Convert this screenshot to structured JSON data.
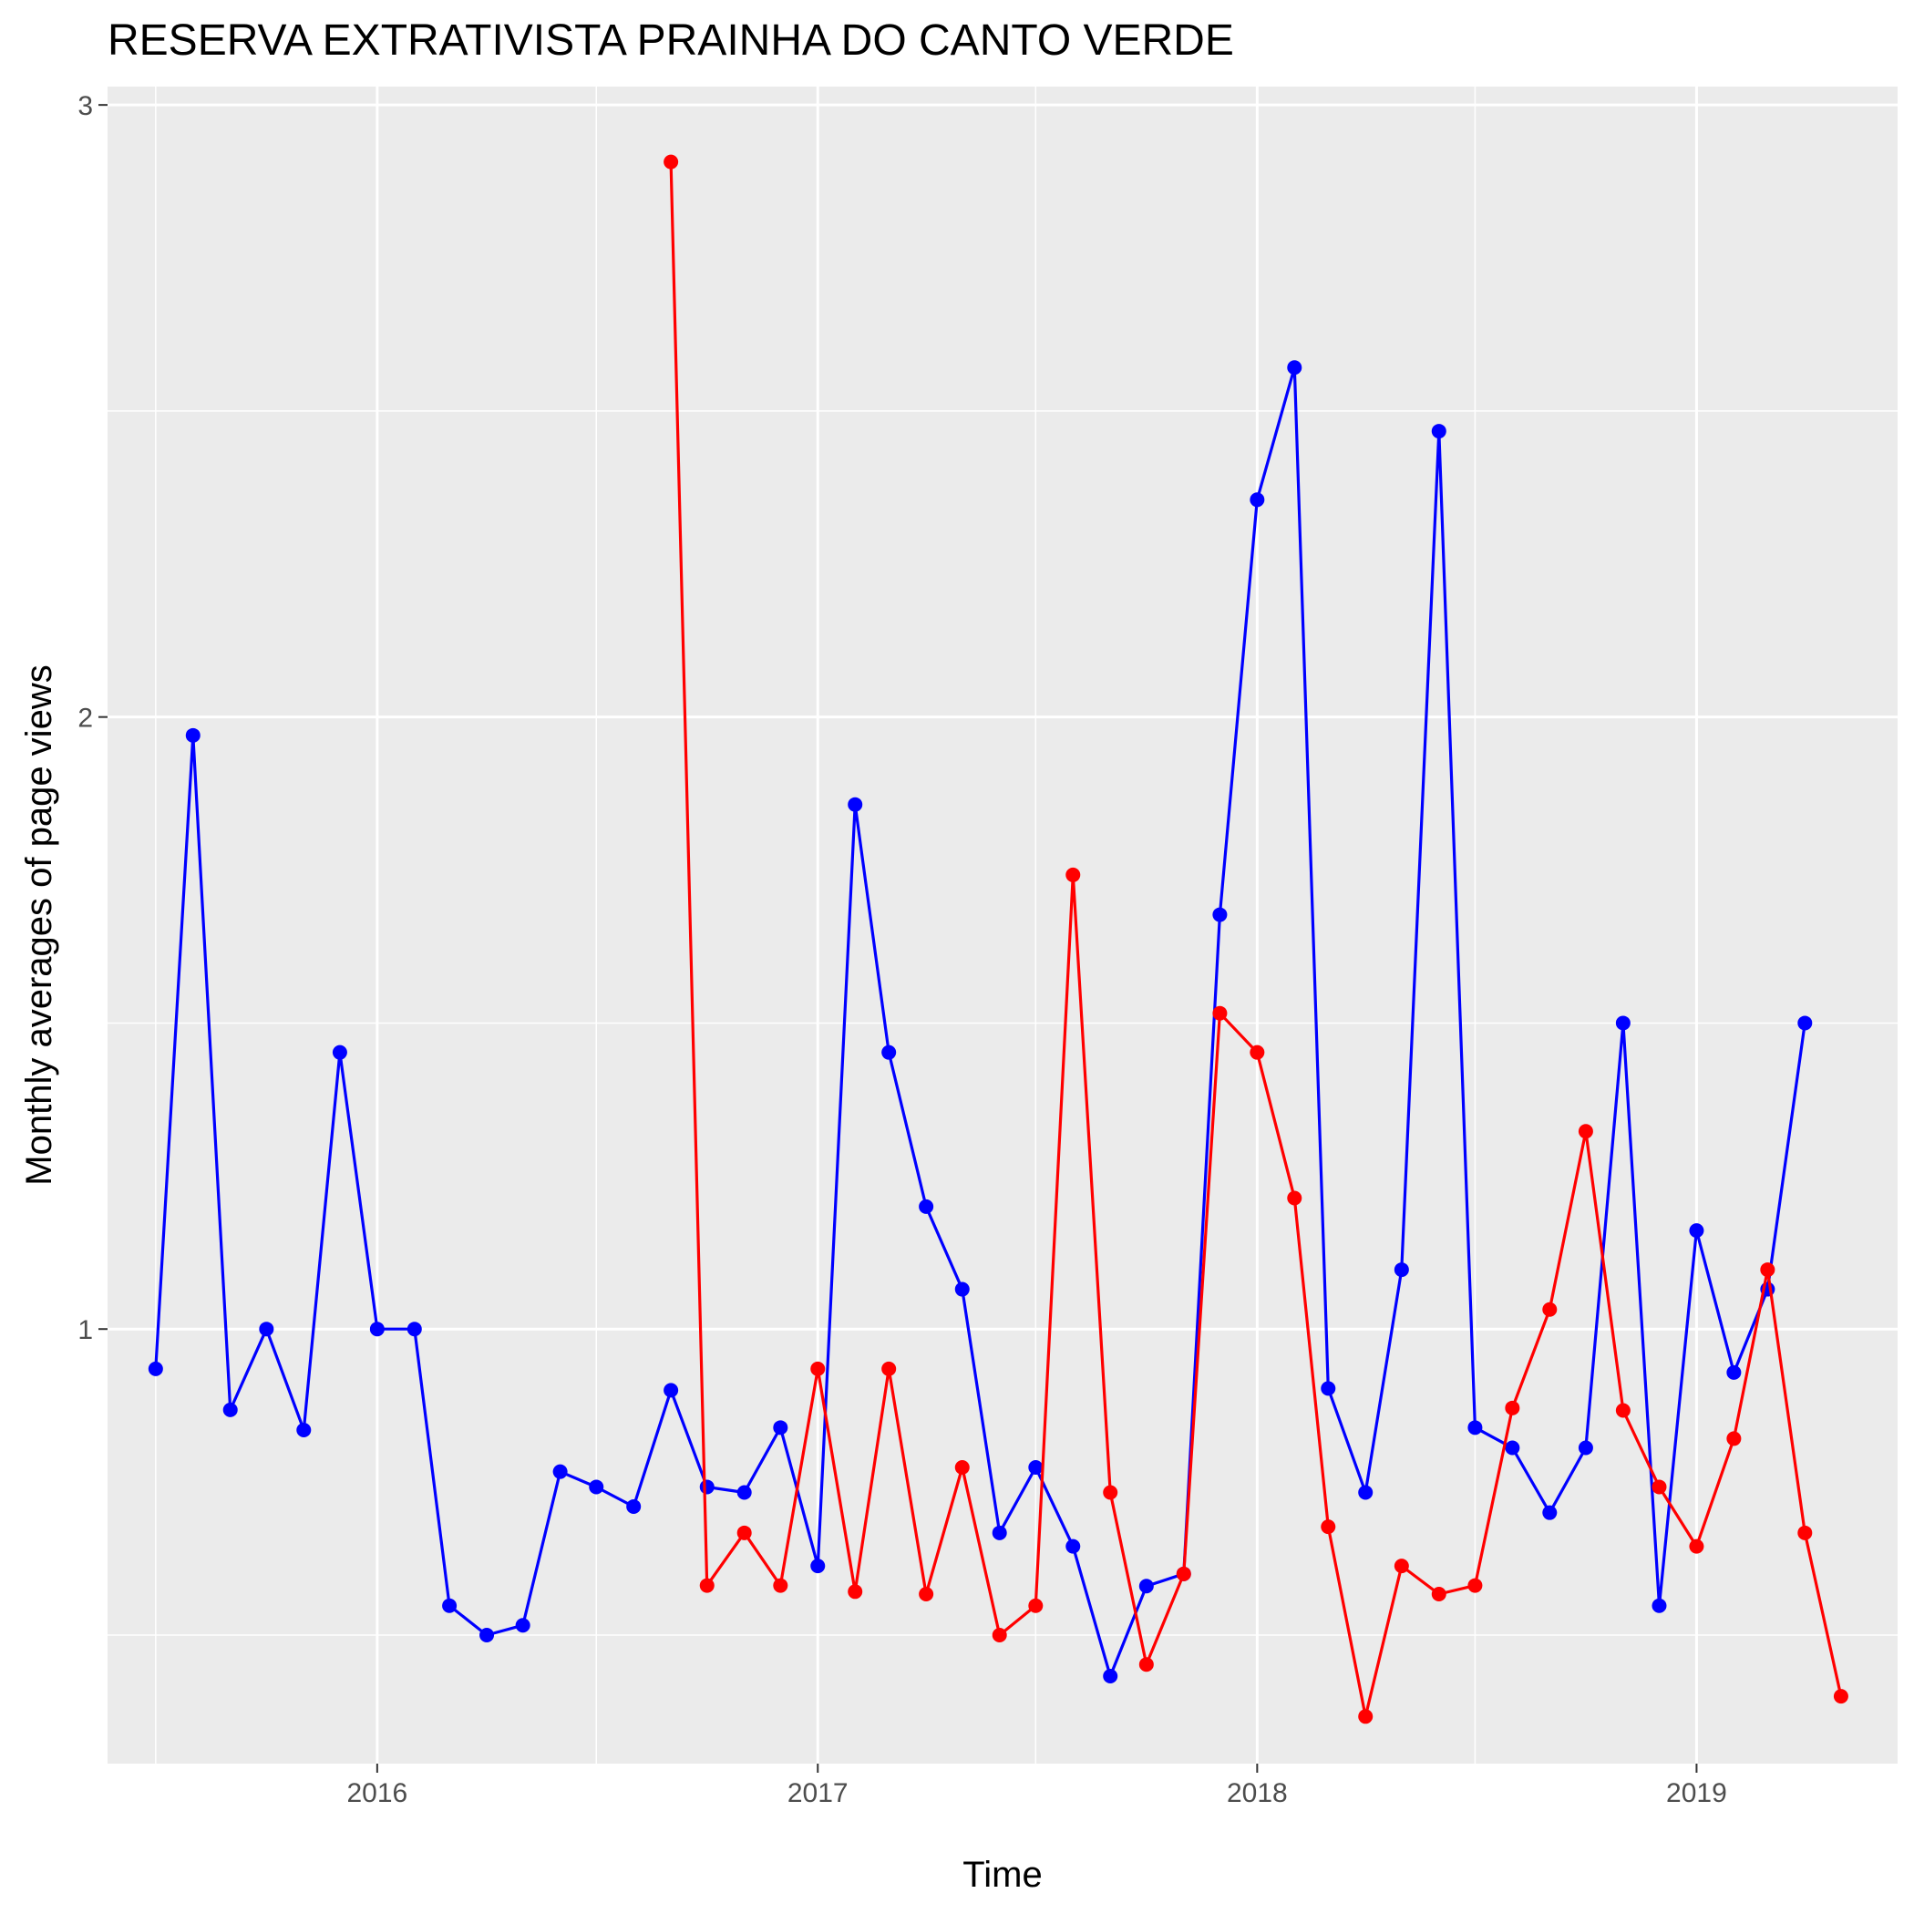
{
  "chart_data": {
    "type": "line",
    "title": "RESERVA EXTRATIVISTA PRAINHA DO CANTO VERDE",
    "xlabel": "Time",
    "ylabel": "Monthly averages of page views",
    "x_ticks": [
      "2016",
      "2017",
      "2018",
      "2019"
    ],
    "y_ticks": [
      "1",
      "2",
      "3"
    ],
    "xlim": [
      "2015-05-22",
      "2019-06-17"
    ],
    "ylim": [
      0.29,
      3.03
    ],
    "grid": true,
    "legend": "none",
    "series": [
      {
        "color": "#0000ff",
        "points": [
          [
            "2015-07-01",
            0.935
          ],
          [
            "2015-08-01",
            1.97
          ],
          [
            "2015-09-01",
            0.868
          ],
          [
            "2015-10-01",
            1.0
          ],
          [
            "2015-11-01",
            0.835
          ],
          [
            "2015-12-01",
            1.452
          ],
          [
            "2016-01-01",
            1.0
          ],
          [
            "2016-02-01",
            1.0
          ],
          [
            "2016-03-01",
            0.548
          ],
          [
            "2016-04-01",
            0.5
          ],
          [
            "2016-05-01",
            0.516
          ],
          [
            "2016-06-01",
            0.767
          ],
          [
            "2016-07-01",
            0.742
          ],
          [
            "2016-08-01",
            0.71
          ],
          [
            "2016-09-01",
            0.9
          ],
          [
            "2016-10-01",
            0.742
          ],
          [
            "2016-11-01",
            0.733
          ],
          [
            "2016-12-01",
            0.839
          ],
          [
            "2017-01-01",
            0.613
          ],
          [
            "2017-02-01",
            1.857
          ],
          [
            "2017-03-01",
            1.452
          ],
          [
            "2017-04-01",
            1.2
          ],
          [
            "2017-05-01",
            1.065
          ],
          [
            "2017-06-01",
            0.667
          ],
          [
            "2017-07-01",
            0.774
          ],
          [
            "2017-08-01",
            0.645
          ],
          [
            "2017-09-01",
            0.433
          ],
          [
            "2017-10-01",
            0.58
          ],
          [
            "2017-11-01",
            0.6
          ],
          [
            "2017-12-01",
            1.677
          ],
          [
            "2018-01-01",
            2.355
          ],
          [
            "2018-02-01",
            2.571
          ],
          [
            "2018-03-01",
            0.903
          ],
          [
            "2018-04-01",
            0.733
          ],
          [
            "2018-05-01",
            1.097
          ],
          [
            "2018-06-01",
            2.467
          ],
          [
            "2018-07-01",
            0.839
          ],
          [
            "2018-08-01",
            0.806
          ],
          [
            "2018-09-01",
            0.7
          ],
          [
            "2018-10-01",
            0.806
          ],
          [
            "2018-11-01",
            1.5
          ],
          [
            "2018-12-01",
            0.548
          ],
          [
            "2019-01-01",
            1.161
          ],
          [
            "2019-02-01",
            0.929
          ],
          [
            "2019-03-01",
            1.065
          ],
          [
            "2019-04-01",
            1.5
          ]
        ]
      },
      {
        "color": "#ff0000",
        "points": [
          [
            "2016-09-01",
            2.907
          ],
          [
            "2016-10-01",
            0.581
          ],
          [
            "2016-11-01",
            0.667
          ],
          [
            "2016-12-01",
            0.581
          ],
          [
            "2017-01-01",
            0.935
          ],
          [
            "2017-02-01",
            0.571
          ],
          [
            "2017-03-01",
            0.935
          ],
          [
            "2017-04-01",
            0.567
          ],
          [
            "2017-05-01",
            0.774
          ],
          [
            "2017-06-01",
            0.5
          ],
          [
            "2017-07-01",
            0.548
          ],
          [
            "2017-08-01",
            1.742
          ],
          [
            "2017-09-01",
            0.733
          ],
          [
            "2017-10-01",
            0.452
          ],
          [
            "2017-11-01",
            0.6
          ],
          [
            "2017-12-01",
            1.516
          ],
          [
            "2018-01-01",
            1.452
          ],
          [
            "2018-02-01",
            1.214
          ],
          [
            "2018-03-01",
            0.677
          ],
          [
            "2018-04-01",
            0.367
          ],
          [
            "2018-05-01",
            0.613
          ],
          [
            "2018-06-01",
            0.567
          ],
          [
            "2018-07-01",
            0.581
          ],
          [
            "2018-08-01",
            0.871
          ],
          [
            "2018-09-01",
            1.032
          ],
          [
            "2018-10-01",
            1.323
          ],
          [
            "2018-11-01",
            0.867
          ],
          [
            "2018-12-01",
            0.742
          ],
          [
            "2019-01-01",
            0.645
          ],
          [
            "2019-02-01",
            0.821
          ],
          [
            "2019-03-01",
            1.097
          ],
          [
            "2019-04-01",
            0.667
          ],
          [
            "2019-05-01",
            0.4
          ]
        ]
      }
    ]
  }
}
